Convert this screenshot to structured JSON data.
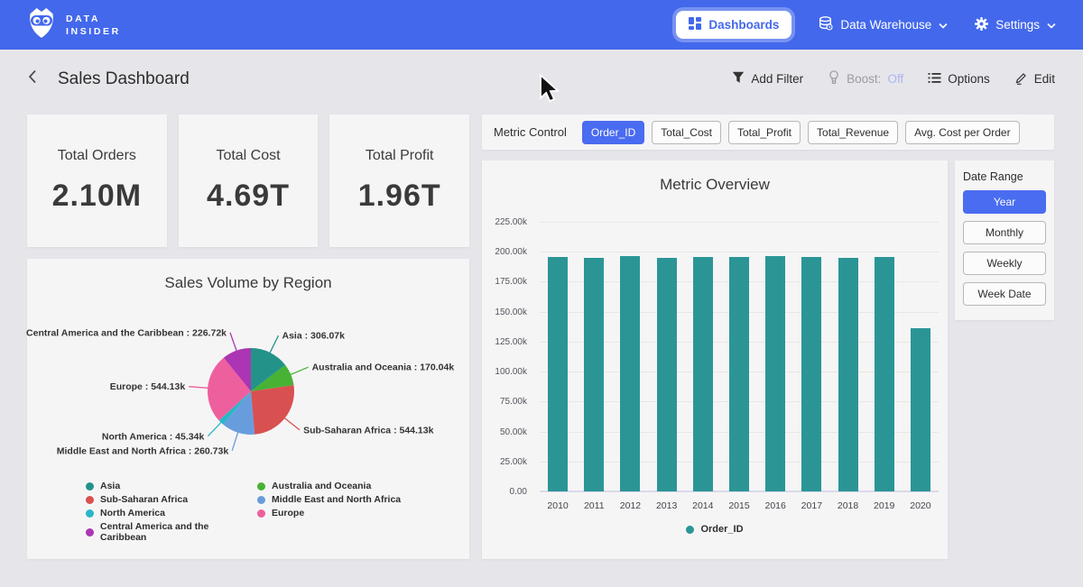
{
  "nav": {
    "brand": {
      "line1": "DATA",
      "line2": "INSIDER"
    },
    "dashboards_label": "Dashboards",
    "data_warehouse_label": "Data Warehouse",
    "settings_label": "Settings"
  },
  "header": {
    "title": "Sales Dashboard",
    "actions": {
      "add_filter": "Add Filter",
      "boost_label": "Boost:",
      "boost_value": "Off",
      "options": "Options",
      "edit": "Edit"
    }
  },
  "kpis": [
    {
      "label": "Total Orders",
      "value": "2.10M"
    },
    {
      "label": "Total Cost",
      "value": "4.69T"
    },
    {
      "label": "Total Profit",
      "value": "1.96T"
    }
  ],
  "metric_control": {
    "label": "Metric Control",
    "options": [
      {
        "label": "Order_ID",
        "selected": true
      },
      {
        "label": "Total_Cost",
        "selected": false
      },
      {
        "label": "Total_Profit",
        "selected": false
      },
      {
        "label": "Total_Revenue",
        "selected": false
      },
      {
        "label": "Avg. Cost per Order",
        "selected": false
      }
    ]
  },
  "date_range": {
    "label": "Date Range",
    "options": [
      {
        "label": "Year",
        "selected": true
      },
      {
        "label": "Monthly",
        "selected": false
      },
      {
        "label": "Weekly",
        "selected": false
      },
      {
        "label": "Week Date",
        "selected": false
      }
    ]
  },
  "colors": {
    "navbar": "#4368ec",
    "selected_button": "#4a6cf0",
    "boost_off": "#a9b5f0"
  },
  "chart_data": [
    {
      "type": "pie",
      "title": "Sales Volume by Region",
      "unit": "k",
      "slices": [
        {
          "label": "Asia",
          "value": 306.07,
          "display": "306.07k",
          "color": "#23938a"
        },
        {
          "label": "Australia and Oceania",
          "value": 170.04,
          "display": "170.04k",
          "color": "#47b234"
        },
        {
          "label": "Sub-Saharan Africa",
          "value": 544.13,
          "display": "544.13k",
          "color": "#d95050"
        },
        {
          "label": "Middle East and North Africa",
          "value": 260.73,
          "display": "260.73k",
          "color": "#689ddd"
        },
        {
          "label": "North America",
          "value": 45.34,
          "display": "45.34k",
          "color": "#29b6c6"
        },
        {
          "label": "Europe",
          "value": 544.13,
          "display": "544.13k",
          "color": "#ee5f9e"
        },
        {
          "label": "Central America and the Caribbean",
          "value": 226.72,
          "display": "226.72k",
          "color": "#ab35b3"
        }
      ],
      "legend_columns": [
        [
          "Asia",
          "Sub-Saharan Africa",
          "North America",
          "Central America and the Caribbean"
        ],
        [
          "Australia and Oceania",
          "Middle East and North Africa",
          "Europe"
        ]
      ]
    },
    {
      "type": "bar",
      "title": "Metric Overview",
      "categories": [
        "2010",
        "2011",
        "2012",
        "2013",
        "2014",
        "2015",
        "2016",
        "2017",
        "2018",
        "2019",
        "2020"
      ],
      "values": [
        195.6,
        195.1,
        196.6,
        195.1,
        195.6,
        195.6,
        196.6,
        195.6,
        195.1,
        195.6,
        136.1
      ],
      "unit": "k",
      "ylim": [
        0,
        225
      ],
      "yticks": [
        {
          "value": 225,
          "label": "225.00k"
        },
        {
          "value": 200,
          "label": "200.00k"
        },
        {
          "value": 175,
          "label": "175.00k"
        },
        {
          "value": 150,
          "label": "150.00k"
        },
        {
          "value": 125,
          "label": "125.00k"
        },
        {
          "value": 100,
          "label": "100.00k"
        },
        {
          "value": 75,
          "label": "75.00k"
        },
        {
          "value": 50,
          "label": "50.00k"
        },
        {
          "value": 25,
          "label": "25.00k"
        },
        {
          "value": 0,
          "label": "0.00"
        }
      ],
      "bar_color": "#2b9596",
      "legend": [
        {
          "label": "Order_ID",
          "color": "#2b9596"
        }
      ],
      "legend_position": "bottom",
      "grid": true
    }
  ]
}
